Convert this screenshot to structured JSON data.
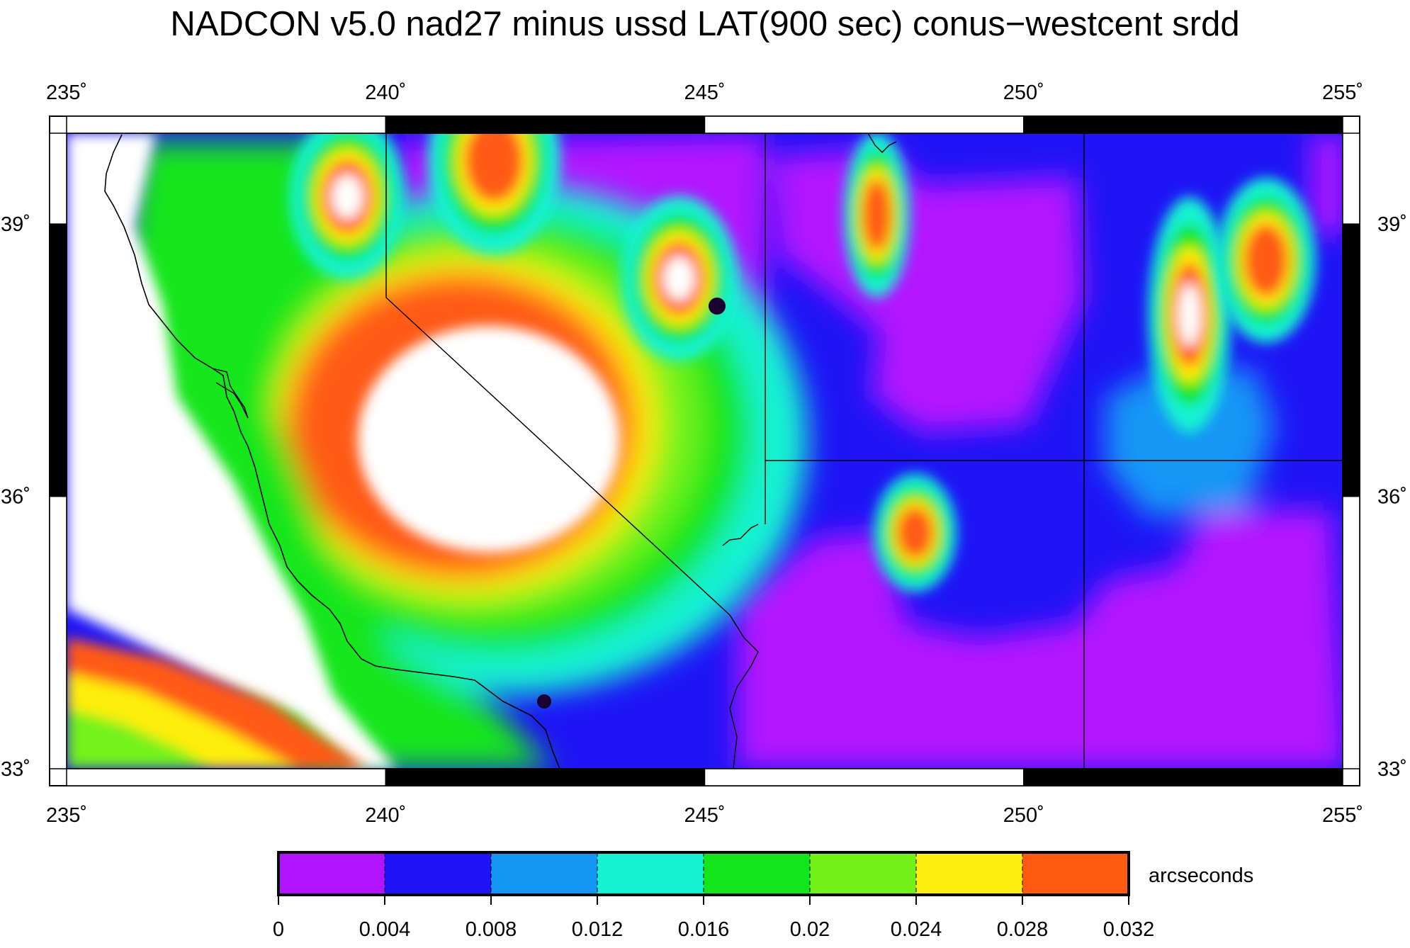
{
  "title": "NADCON v5.0 nad27 minus ussd LAT(900 sec) conus−westcent srdd",
  "map": {
    "lon_range": [
      235,
      255
    ],
    "lat_range": [
      33,
      40
    ],
    "lon_ticks": [
      {
        "value": 235,
        "label": "235˚"
      },
      {
        "value": 240,
        "label": "240˚"
      },
      {
        "value": 245,
        "label": "245˚"
      },
      {
        "value": 250,
        "label": "250˚"
      },
      {
        "value": 255,
        "label": "255˚"
      }
    ],
    "lat_ticks": [
      {
        "value": 33,
        "label": "33˚"
      },
      {
        "value": 36,
        "label": "36˚"
      },
      {
        "value": 39,
        "label": "39˚"
      }
    ],
    "blobs": [
      {
        "lon": 239.9,
        "lat": 37.4,
        "rx": 2.0,
        "ry": 1.3,
        "color": "#ffffff",
        "name": "central-valley-max"
      },
      {
        "lon": 237.6,
        "lat": 36.2,
        "rx": 2.3,
        "ry": 3.2,
        "color": "#ffffff",
        "name": "coast-high"
      },
      {
        "lon": 238.3,
        "lat": 33.8,
        "rx": 3.0,
        "ry": 0.9,
        "color": "#ff5a12",
        "name": "offshore-red-band"
      },
      {
        "lon": 236.5,
        "lat": 33.4,
        "rx": 1.6,
        "ry": 0.45,
        "color": "#ffee10",
        "name": "offshore-yellow-band"
      },
      {
        "lon": 236.2,
        "lat": 33.2,
        "rx": 1.0,
        "ry": 0.3,
        "color": "#73f21a",
        "name": "offshore-green-band"
      },
      {
        "lon": 244.6,
        "lat": 38.4,
        "rx": 0.35,
        "ry": 0.35,
        "color": "#ffffff",
        "name": "nevada-peak"
      },
      {
        "lon": 241.7,
        "lat": 39.7,
        "rx": 0.4,
        "ry": 0.4,
        "color": "#ff5a12",
        "name": "tahoe-peak"
      },
      {
        "lon": 239.4,
        "lat": 39.3,
        "rx": 0.35,
        "ry": 0.35,
        "color": "#ffffff",
        "name": "sacramento-peak"
      },
      {
        "lon": 247.7,
        "lat": 39.1,
        "rx": 0.2,
        "ry": 0.35,
        "color": "#ff5a12",
        "name": "utah-peak"
      },
      {
        "lon": 248.3,
        "lat": 35.6,
        "rx": 0.25,
        "ry": 0.25,
        "color": "#ff5a12",
        "name": "arizona-peak"
      },
      {
        "lon": 252.6,
        "lat": 38.0,
        "rx": 0.25,
        "ry": 0.5,
        "color": "#ffffff",
        "name": "colorado-peak"
      },
      {
        "lon": 253.8,
        "lat": 38.6,
        "rx": 0.3,
        "ry": 0.35,
        "color": "#ff5a12",
        "name": "colorado-peak-east"
      }
    ]
  },
  "colorbar": {
    "colors": [
      "#b214ff",
      "#1e14f5",
      "#1496f5",
      "#14f2d2",
      "#14e61e",
      "#73f21a",
      "#ffee10",
      "#ff5a12"
    ],
    "ticks": [
      "0",
      "0.004",
      "0.008",
      "0.012",
      "0.016",
      "0.02",
      "0.024",
      "0.028",
      "0.032"
    ],
    "unit_label": "arcseconds"
  }
}
